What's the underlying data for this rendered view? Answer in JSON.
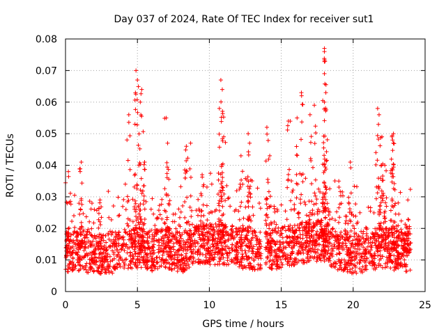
{
  "chart_data": {
    "type": "scatter",
    "title": "Day 037 of 2024, Rate Of TEC Index for receiver sut1",
    "xlabel": "GPS time / hours",
    "ylabel": "ROTI / TECUs",
    "xlim": [
      0,
      25
    ],
    "ylim": [
      0,
      0.08
    ],
    "xticks": [
      0,
      5,
      10,
      15,
      20,
      25
    ],
    "yticks": [
      0,
      0.01,
      0.02,
      0.03,
      0.04,
      0.05,
      0.06,
      0.07,
      0.08
    ],
    "xtick_labels": [
      "0",
      "5",
      "10",
      "15",
      "20",
      "25"
    ],
    "ytick_labels": [
      "0",
      "0.01",
      "0.02",
      "0.03",
      "0.04",
      "0.05",
      "0.06",
      "0.07",
      "0.08"
    ],
    "grid": true,
    "marker": "+",
    "color": "#ff0000",
    "series": [
      {
        "name": "ROTI",
        "data_gap_hours": [
          13.6,
          13.9
        ],
        "baseline_points": [
          {
            "x": 0.0,
            "y": 0.012
          },
          {
            "x": 1.0,
            "y": 0.013
          },
          {
            "x": 2.0,
            "y": 0.012
          },
          {
            "x": 3.0,
            "y": 0.012
          },
          {
            "x": 4.0,
            "y": 0.013
          },
          {
            "x": 5.0,
            "y": 0.014
          },
          {
            "x": 6.0,
            "y": 0.013
          },
          {
            "x": 7.0,
            "y": 0.014
          },
          {
            "x": 8.0,
            "y": 0.012
          },
          {
            "x": 9.0,
            "y": 0.015
          },
          {
            "x": 10.0,
            "y": 0.015
          },
          {
            "x": 11.0,
            "y": 0.015
          },
          {
            "x": 12.0,
            "y": 0.014
          },
          {
            "x": 13.0,
            "y": 0.013
          },
          {
            "x": 14.0,
            "y": 0.013
          },
          {
            "x": 15.0,
            "y": 0.014
          },
          {
            "x": 16.0,
            "y": 0.015
          },
          {
            "x": 17.0,
            "y": 0.016
          },
          {
            "x": 18.0,
            "y": 0.016
          },
          {
            "x": 19.0,
            "y": 0.013
          },
          {
            "x": 20.0,
            "y": 0.012
          },
          {
            "x": 21.0,
            "y": 0.013
          },
          {
            "x": 22.0,
            "y": 0.014
          },
          {
            "x": 23.0,
            "y": 0.013
          },
          {
            "x": 24.0,
            "y": 0.012
          }
        ],
        "peak_points": [
          {
            "x": 0.2,
            "y": 0.038
          },
          {
            "x": 1.1,
            "y": 0.041
          },
          {
            "x": 2.4,
            "y": 0.029
          },
          {
            "x": 4.4,
            "y": 0.056
          },
          {
            "x": 4.9,
            "y": 0.07
          },
          {
            "x": 5.0,
            "y": 0.067
          },
          {
            "x": 5.3,
            "y": 0.064
          },
          {
            "x": 5.2,
            "y": 0.06
          },
          {
            "x": 5.5,
            "y": 0.041
          },
          {
            "x": 7.0,
            "y": 0.055
          },
          {
            "x": 7.1,
            "y": 0.047
          },
          {
            "x": 8.4,
            "y": 0.046
          },
          {
            "x": 8.7,
            "y": 0.047
          },
          {
            "x": 9.5,
            "y": 0.037
          },
          {
            "x": 10.8,
            "y": 0.067
          },
          {
            "x": 10.9,
            "y": 0.064
          },
          {
            "x": 10.7,
            "y": 0.058
          },
          {
            "x": 11.0,
            "y": 0.049
          },
          {
            "x": 12.2,
            "y": 0.043
          },
          {
            "x": 12.7,
            "y": 0.05
          },
          {
            "x": 12.8,
            "y": 0.047
          },
          {
            "x": 14.0,
            "y": 0.052
          },
          {
            "x": 14.2,
            "y": 0.043
          },
          {
            "x": 15.5,
            "y": 0.054
          },
          {
            "x": 16.1,
            "y": 0.055
          },
          {
            "x": 16.4,
            "y": 0.063
          },
          {
            "x": 17.0,
            "y": 0.056
          },
          {
            "x": 17.3,
            "y": 0.059
          },
          {
            "x": 18.0,
            "y": 0.077
          },
          {
            "x": 18.0,
            "y": 0.076
          },
          {
            "x": 18.0,
            "y": 0.069
          },
          {
            "x": 18.1,
            "y": 0.063
          },
          {
            "x": 18.0,
            "y": 0.06
          },
          {
            "x": 19.0,
            "y": 0.035
          },
          {
            "x": 19.8,
            "y": 0.041
          },
          {
            "x": 21.7,
            "y": 0.058
          },
          {
            "x": 21.8,
            "y": 0.056
          },
          {
            "x": 22.0,
            "y": 0.049
          },
          {
            "x": 22.2,
            "y": 0.04
          },
          {
            "x": 22.7,
            "y": 0.049
          },
          {
            "x": 22.8,
            "y": 0.05
          },
          {
            "x": 22.8,
            "y": 0.047
          },
          {
            "x": 23.8,
            "y": 0.029
          }
        ]
      }
    ]
  }
}
